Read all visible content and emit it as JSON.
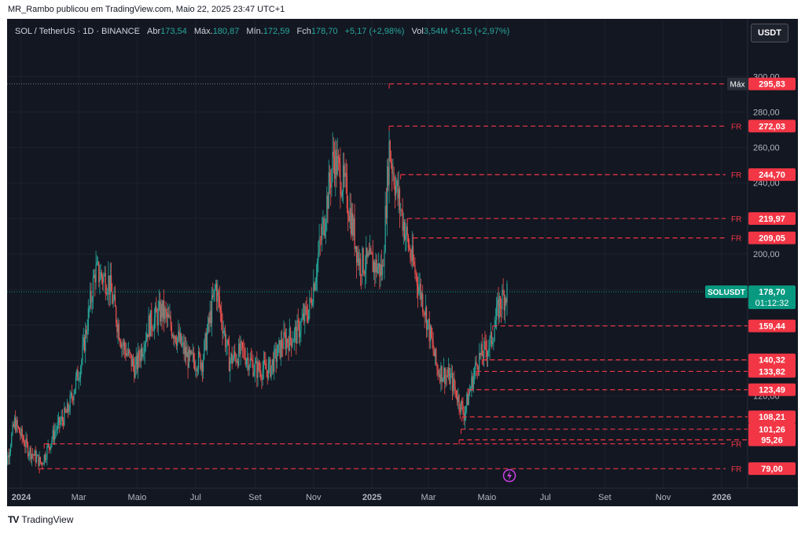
{
  "header": {
    "published_line": "MR_Rambo publicou em TradingView.com, Maio 22, 2025 23:47 UTC+1"
  },
  "legend": {
    "symbol": "SOL / TetherUS · 1D · BINANCE",
    "open_label": "Abr",
    "open": "173,54",
    "high_label": "Máx.",
    "high": "180,87",
    "low_label": "Mín.",
    "low": "172,59",
    "close_label": "Fch",
    "close": "178,70",
    "change": "+5,17 (+2,98%)",
    "vol_label": "Vol",
    "vol": "3,54M",
    "vol_change": "+5,15 (+2,97%)"
  },
  "currency_button": "USDT",
  "brand": {
    "name": "TradingView",
    "logo": "TV"
  },
  "colors": {
    "up": "#26a69a",
    "down": "#ef5350",
    "level": "#f23645",
    "bg": "#131722",
    "grid": "#1e222d",
    "axis_text": "#b2b5be",
    "current": "#089981",
    "max_badge": "#2a2e39"
  },
  "chart_data": {
    "type": "candlestick",
    "symbol": "SOLUSDT",
    "ylim": [
      68,
      305
    ],
    "y_ticks": [
      "120,00",
      "140,00",
      "160,00",
      "180,00",
      "200,00",
      "220,00",
      "240,00",
      "260,00",
      "280,00",
      "300,00"
    ],
    "y_tick_values": [
      120,
      140,
      160,
      180,
      200,
      220,
      240,
      260,
      280,
      300
    ],
    "x_ticks": [
      {
        "label": "2024",
        "date": "2024-01-01",
        "bold": true
      },
      {
        "label": "Mar",
        "date": "2024-03-01"
      },
      {
        "label": "Maio",
        "date": "2024-05-01"
      },
      {
        "label": "Jul",
        "date": "2024-07-01"
      },
      {
        "label": "Set",
        "date": "2024-09-01"
      },
      {
        "label": "Nov",
        "date": "2024-11-01"
      },
      {
        "label": "2025",
        "date": "2025-01-01",
        "bold": true
      },
      {
        "label": "Mar",
        "date": "2025-03-01"
      },
      {
        "label": "Maio",
        "date": "2025-05-01"
      },
      {
        "label": "Jul",
        "date": "2025-07-01"
      },
      {
        "label": "Set",
        "date": "2025-09-01"
      },
      {
        "label": "Nov",
        "date": "2025-11-01"
      },
      {
        "label": "2026",
        "date": "2026-01-01",
        "bold": true
      }
    ],
    "price_path": [
      [
        "2023-12-12",
        70
      ],
      [
        "2023-12-25",
        105
      ],
      [
        "2024-01-08",
        90
      ],
      [
        "2024-01-22",
        82
      ],
      [
        "2024-02-05",
        100
      ],
      [
        "2024-02-19",
        112
      ],
      [
        "2024-03-04",
        140
      ],
      [
        "2024-03-18",
        190
      ],
      [
        "2024-04-01",
        185
      ],
      [
        "2024-04-15",
        150
      ],
      [
        "2024-04-29",
        135
      ],
      [
        "2024-05-13",
        160
      ],
      [
        "2024-05-27",
        168
      ],
      [
        "2024-06-10",
        155
      ],
      [
        "2024-06-24",
        140
      ],
      [
        "2024-07-08",
        140
      ],
      [
        "2024-07-22",
        182
      ],
      [
        "2024-08-05",
        140
      ],
      [
        "2024-08-19",
        145
      ],
      [
        "2024-09-02",
        135
      ],
      [
        "2024-09-16",
        135
      ],
      [
        "2024-09-30",
        150
      ],
      [
        "2024-10-14",
        155
      ],
      [
        "2024-10-28",
        170
      ],
      [
        "2024-11-11",
        215
      ],
      [
        "2024-11-22",
        255
      ],
      [
        "2024-12-05",
        235
      ],
      [
        "2024-12-19",
        195
      ],
      [
        "2025-01-01",
        195
      ],
      [
        "2025-01-12",
        190
      ],
      [
        "2025-01-19",
        260
      ],
      [
        "2025-01-27",
        235
      ],
      [
        "2025-02-10",
        200
      ],
      [
        "2025-02-24",
        172
      ],
      [
        "2025-03-10",
        135
      ],
      [
        "2025-03-24",
        130
      ],
      [
        "2025-04-07",
        110
      ],
      [
        "2025-04-21",
        140
      ],
      [
        "2025-05-05",
        150
      ],
      [
        "2025-05-14",
        172
      ],
      [
        "2025-05-22",
        178.7
      ]
    ],
    "levels": [
      {
        "value": 295.83,
        "label": "295,83",
        "start": "2025-01-19",
        "tag": "Máx"
      },
      {
        "value": 272.03,
        "label": "272,03",
        "start": "2025-01-19",
        "tag": "FR"
      },
      {
        "value": 244.7,
        "label": "244,70",
        "start": "2025-01-31",
        "tag": "FR"
      },
      {
        "value": 219.97,
        "label": "219,97",
        "start": "2025-02-07",
        "tag": "FR"
      },
      {
        "value": 209.05,
        "label": "209,05",
        "start": "2025-02-13",
        "tag": "FR"
      },
      {
        "value": 159.44,
        "label": "159,44",
        "start": "2025-05-07",
        "tag": ""
      },
      {
        "value": 140.32,
        "label": "140,32",
        "start": "2025-04-26",
        "tag": ""
      },
      {
        "value": 133.82,
        "label": "133,82",
        "start": "2025-04-20",
        "tag": ""
      },
      {
        "value": 123.49,
        "label": "123,49",
        "start": "2025-04-12",
        "tag": ""
      },
      {
        "value": 108.21,
        "label": "108,21",
        "start": "2025-04-05",
        "tag": ""
      },
      {
        "value": 101.26,
        "label": "101,26",
        "start": "2025-04-04",
        "tag": ""
      },
      {
        "value": 95.26,
        "label": "95,26",
        "start": "2025-04-02",
        "tag": ""
      },
      {
        "value": 93.0,
        "label": "",
        "start": "2024-01-25",
        "tag": "FR"
      },
      {
        "value": 79.0,
        "label": "79,00",
        "start": "2024-01-20",
        "tag": "FR"
      }
    ],
    "current": {
      "value": 178.7,
      "label": "178,70",
      "countdown": "01:12:32",
      "symbol_tag": "SOLUSDT"
    }
  }
}
